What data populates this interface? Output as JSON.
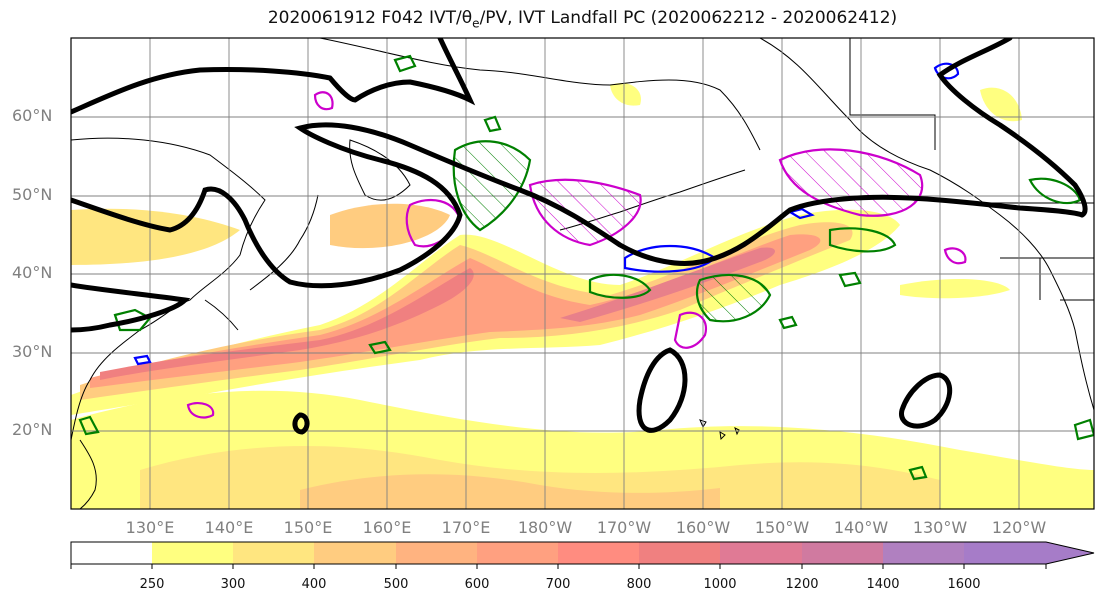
{
  "title": {
    "prefix": "2020061912 F042 IVT/",
    "theta": "θ",
    "theta_sub": "e",
    "suffix": "/PV, IVT Landfall PC (2020062212 - 2020062412)"
  },
  "latitude_labels": [
    "60°N",
    "50°N",
    "40°N",
    "30°N",
    "20°N"
  ],
  "longitude_labels": [
    "130°E",
    "140°E",
    "150°E",
    "160°E",
    "170°E",
    "180°W",
    "170°W",
    "160°W",
    "150°W",
    "140°W",
    "130°W",
    "120°W"
  ],
  "colorbar": {
    "labels": [
      "250",
      "300",
      "400",
      "500",
      "600",
      "700",
      "800",
      "1000",
      "1200",
      "1400",
      "1600"
    ],
    "colors": [
      "#ffff80",
      "#ffe680",
      "#ffcc80",
      "#ffb380",
      "#ffa080",
      "#ff8c80",
      "#f08080",
      "#e07a95",
      "#c080b0",
      "#b080c0",
      "#a67cc8"
    ]
  },
  "colors": {
    "theta_e_contour": "#000000",
    "pv_contour_green": "#008000",
    "pv_contour_magenta": "#cc00cc",
    "pv_contour_blue": "#0000ff",
    "grid": "#808080"
  }
}
